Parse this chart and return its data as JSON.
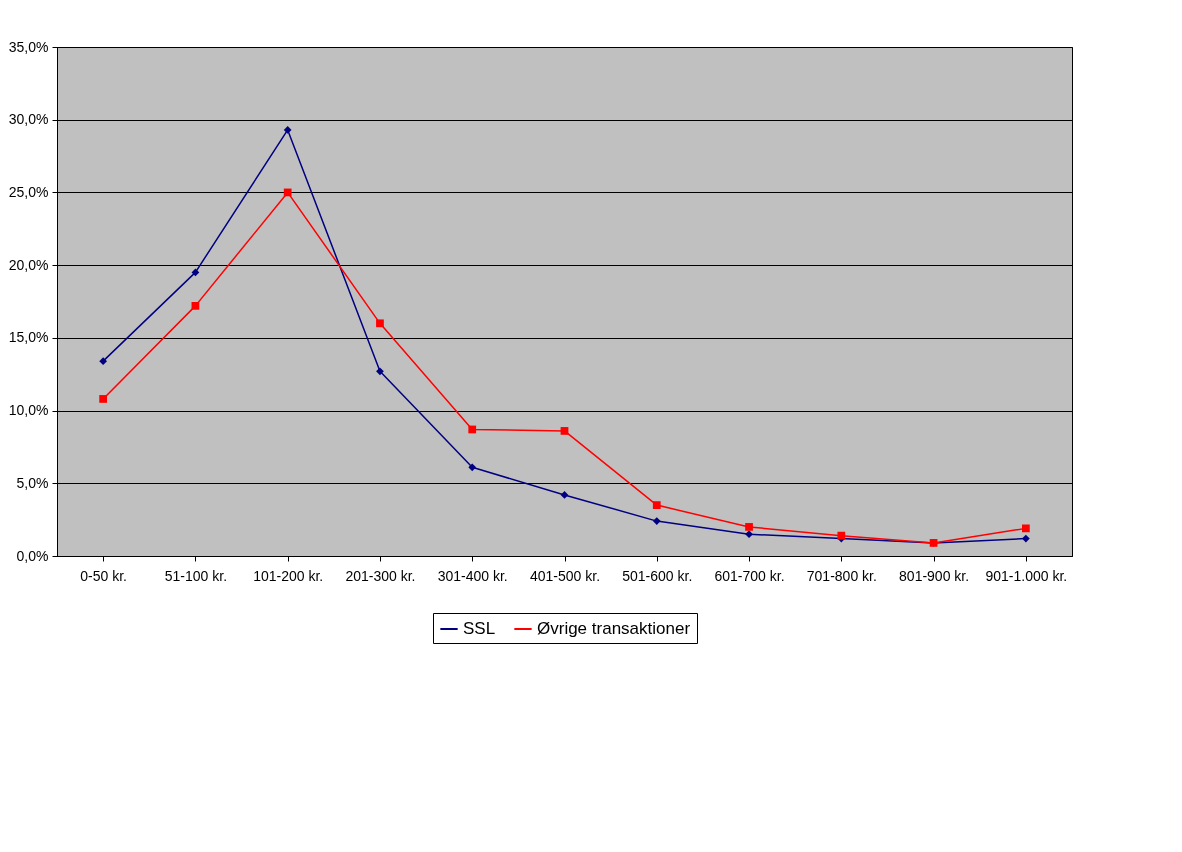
{
  "chart_data": {
    "type": "line",
    "categories": [
      "0-50 kr.",
      "51-100 kr.",
      "101-200 kr.",
      "201-300 kr.",
      "301-400 kr.",
      "401-500 kr.",
      "501-600 kr.",
      "601-700 kr.",
      "701-800 kr.",
      "801-900 kr.",
      "901-1.000 kr."
    ],
    "series": [
      {
        "name": "SSL",
        "color": "#000080",
        "marker": "diamond",
        "values": [
          13.4,
          19.5,
          29.3,
          12.7,
          6.1,
          4.2,
          2.4,
          1.5,
          1.2,
          0.9,
          1.2
        ]
      },
      {
        "name": "Øvrige transaktioner",
        "color": "#ff0000",
        "marker": "square",
        "values": [
          10.8,
          17.2,
          25.0,
          16.0,
          8.7,
          8.6,
          3.5,
          2.0,
          1.4,
          0.9,
          1.9
        ]
      }
    ],
    "ylim": [
      0,
      35
    ],
    "yticks": [
      {
        "value": 0,
        "label": "0,0%"
      },
      {
        "value": 5,
        "label": "5,0%"
      },
      {
        "value": 10,
        "label": "10,0%"
      },
      {
        "value": 15,
        "label": "15,0%"
      },
      {
        "value": 20,
        "label": "20,0%"
      },
      {
        "value": 25,
        "label": "25,0%"
      },
      {
        "value": 30,
        "label": "30,0%"
      },
      {
        "value": 35,
        "label": "35,0%"
      }
    ],
    "grid": "y",
    "legend": "bottom",
    "line_style": "solid"
  }
}
